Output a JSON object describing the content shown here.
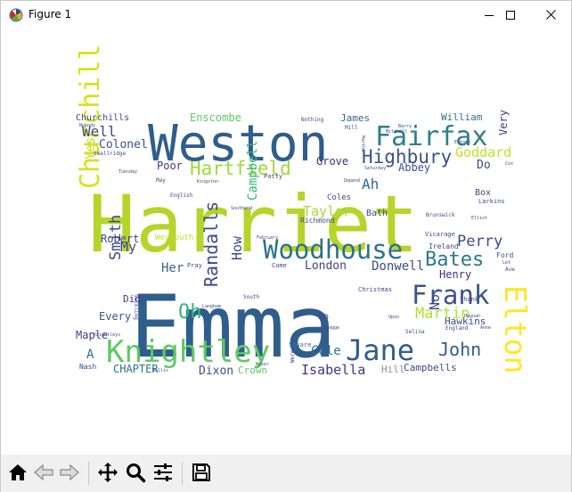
{
  "window": {
    "title": "Figure 1"
  },
  "wordcloud": {
    "words": [
      {
        "t": "Emma",
        "c": "#2f5d8c"
      },
      {
        "t": "Harriet",
        "c": "#b6d42a"
      },
      {
        "t": "Weston",
        "c": "#2f5d8c"
      },
      {
        "t": "Fairfax",
        "c": "#2d7f8a"
      },
      {
        "t": "Knightley",
        "c": "#5ec962"
      },
      {
        "t": "Woodhouse",
        "c": "#2c728e"
      },
      {
        "t": "Jane",
        "c": "#2f5d8c"
      },
      {
        "t": "Elton",
        "c": "#fde725"
      },
      {
        "t": "Churchill",
        "c": "#d8e219"
      },
      {
        "t": "Frank",
        "c": "#3b528b"
      },
      {
        "t": "Hartfield",
        "c": "#a0da39"
      },
      {
        "t": "Highbury",
        "c": "#3b528b"
      },
      {
        "t": "Bates",
        "c": "#2a788e"
      },
      {
        "t": "Randalls",
        "c": "#3e4a89"
      },
      {
        "t": "Oh",
        "c": "#35b779"
      },
      {
        "t": "John",
        "c": "#2f5d8c"
      },
      {
        "t": "Martin",
        "c": "#b5de2b"
      },
      {
        "t": "Perry",
        "c": "#3e4a89"
      },
      {
        "t": "Goddard",
        "c": "#c2df23"
      },
      {
        "t": "Isabella",
        "c": "#46337e"
      },
      {
        "t": "Well",
        "c": "#414487"
      },
      {
        "t": "Ah",
        "c": "#31688e"
      },
      {
        "t": "Taylor",
        "c": "#a5db36"
      },
      {
        "t": "Smith",
        "c": "#3e4a89"
      },
      {
        "t": "Colonel",
        "c": "#3b528b"
      },
      {
        "t": "Cole",
        "c": "#2c728e"
      },
      {
        "t": "Donwell",
        "c": "#3e4a89"
      },
      {
        "t": "London",
        "c": "#414487"
      },
      {
        "t": "Henry",
        "c": "#472d7b"
      },
      {
        "t": "Campbell",
        "c": "#35b779"
      },
      {
        "t": "How",
        "c": "#3e4a89"
      },
      {
        "t": "Every",
        "c": "#3b528b"
      },
      {
        "t": "CHAPTER",
        "c": "#2c728e"
      },
      {
        "t": "Dixon",
        "c": "#3e4a89"
      },
      {
        "t": "Her",
        "c": "#31688e"
      },
      {
        "t": "My",
        "c": "#414487"
      },
      {
        "t": "Abbey",
        "c": "#3b528b"
      },
      {
        "t": "Grove",
        "c": "#482878"
      },
      {
        "t": "Poor",
        "c": "#46337e"
      },
      {
        "t": "Do",
        "c": "#3e4a89"
      },
      {
        "t": "No",
        "c": "#3e4a89"
      },
      {
        "t": "Robert",
        "c": "#3e4a89"
      },
      {
        "t": "Churchills",
        "c": "#414487"
      },
      {
        "t": "Enscombe",
        "c": "#5ec962"
      },
      {
        "t": "James",
        "c": "#31688e"
      },
      {
        "t": "William",
        "c": "#2c728e"
      },
      {
        "t": "Very",
        "c": "#46337e"
      },
      {
        "t": "Yes",
        "c": "#c2df23"
      },
      {
        "t": "Maple",
        "c": "#414487"
      },
      {
        "t": "Did",
        "c": "#46337e"
      },
      {
        "t": "A",
        "c": "#2c728e"
      },
      {
        "t": "Crown",
        "c": "#5ec962"
      },
      {
        "t": "Hill",
        "c": "#8f8f8f"
      },
      {
        "t": "Campbells",
        "c": "#3e4a89"
      },
      {
        "t": "Hawkins",
        "c": "#3e4a89"
      },
      {
        "t": "Weymouth",
        "c": "#c2df23"
      },
      {
        "t": "Bath",
        "c": "#3e4a89"
      },
      {
        "t": "Box",
        "c": "#3e4a89"
      },
      {
        "t": "Coles",
        "c": "#3e4a89"
      },
      {
        "t": "Richmond",
        "c": "#3e4a89"
      },
      {
        "t": "Ireland",
        "c": "#3e4a89"
      },
      {
        "t": "Vicarage",
        "c": "#3e4a89"
      },
      {
        "t": "So",
        "c": "#3e4a89"
      },
      {
        "t": "Christmas",
        "c": "#3e4a89"
      },
      {
        "t": "Nash",
        "c": "#3e4a89"
      },
      {
        "t": "Pray",
        "c": "#3e4a89"
      },
      {
        "t": "Come",
        "c": "#3e4a89"
      },
      {
        "t": "Square",
        "c": "#2c728e"
      },
      {
        "t": "Larkins",
        "c": "#3e4a89"
      },
      {
        "t": "Brunswick",
        "c": "#3e4a89"
      },
      {
        "t": "Smallridge",
        "c": "#3e4a89"
      },
      {
        "t": "Patty",
        "c": "#3e4a89"
      },
      {
        "t": "English",
        "c": "#3e4a89"
      },
      {
        "t": "Ford",
        "c": "#3e4a89"
      },
      {
        "t": "Suckling",
        "c": "#3e4a89"
      },
      {
        "t": "Selina",
        "c": "#3e4a89"
      },
      {
        "t": "Nothing",
        "c": "#3e4a89"
      },
      {
        "t": "Mill",
        "c": "#3e4a89"
      },
      {
        "t": "Martha",
        "c": "#3e4a89"
      },
      {
        "t": "Saturday",
        "c": "#3e4a89"
      },
      {
        "t": "Barry",
        "c": "#3e4a89"
      },
      {
        "t": "Thank",
        "c": "#3e4a89"
      },
      {
        "t": "England",
        "c": "#3e4a89"
      },
      {
        "t": "Elliot",
        "c": "#3e4a89"
      },
      {
        "t": "Kingston",
        "c": "#3e4a89"
      },
      {
        "t": "Langham",
        "c": "#3e4a89"
      },
      {
        "t": "Hannah",
        "c": "#3e4a89"
      },
      {
        "t": "February",
        "c": "#3e4a89"
      },
      {
        "t": "Tuesday",
        "c": "#3e4a89"
      },
      {
        "t": "Nobody",
        "c": "#3e4a89"
      },
      {
        "t": "Depend",
        "c": "#3e4a89"
      },
      {
        "t": "Southend",
        "c": "#3e4a89"
      },
      {
        "t": "Mitchell",
        "c": "#3e4a89"
      },
      {
        "t": "South",
        "c": "#3e4a89"
      },
      {
        "t": "Cox",
        "c": "#3e4a89"
      },
      {
        "t": "Were",
        "c": "#3e4a89"
      },
      {
        "t": "Never",
        "c": "#3e4a89"
      },
      {
        "t": "Eltons",
        "c": "#3e4a89"
      },
      {
        "t": "Knightleys",
        "c": "#3e4a89"
      },
      {
        "t": "Anne",
        "c": "#3e4a89"
      },
      {
        "t": "Bragge",
        "c": "#3e4a89"
      },
      {
        "t": "Wallis",
        "c": "#3e4a89"
      },
      {
        "t": "May",
        "c": "#3e4a89"
      },
      {
        "t": "Upon",
        "c": "#3e4a89"
      },
      {
        "t": "Ave",
        "c": "#3e4a89"
      },
      {
        "t": "Let",
        "c": "#3e4a89"
      }
    ]
  },
  "toolbar": {
    "buttons": [
      {
        "id": "home",
        "icon": "home-icon"
      },
      {
        "id": "back",
        "icon": "back-arrow-icon"
      },
      {
        "id": "forward",
        "icon": "forward-arrow-icon"
      },
      {
        "id": "pan",
        "icon": "move-icon"
      },
      {
        "id": "zoom",
        "icon": "zoom-icon"
      },
      {
        "id": "configure",
        "icon": "sliders-icon"
      },
      {
        "id": "save",
        "icon": "save-icon"
      }
    ]
  }
}
